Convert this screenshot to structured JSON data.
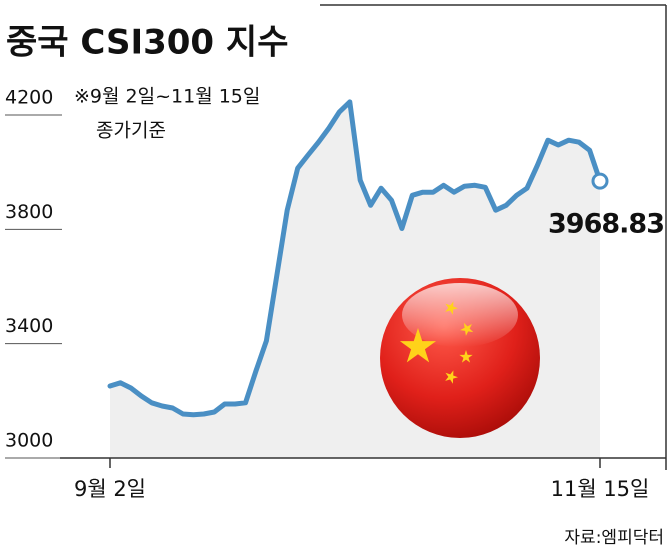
{
  "chart_data": {
    "type": "line",
    "title": "중국 CSI300 지수",
    "annotations": [
      "※9월 2일~11월 15일",
      "종가기준"
    ],
    "source": "자료:엠피닥터",
    "categories": [
      "9월 2일",
      null,
      null,
      null,
      null,
      null,
      null,
      null,
      null,
      null,
      null,
      null,
      null,
      null,
      null,
      null,
      null,
      null,
      null,
      null,
      null,
      null,
      null,
      null,
      null,
      null,
      null,
      null,
      null,
      null,
      null,
      null,
      null,
      null,
      null,
      null,
      null,
      null,
      null,
      null,
      null,
      null,
      null,
      null,
      null,
      null,
      null,
      "11월 15일"
    ],
    "values": [
      3252,
      3263,
      3245,
      3217,
      3193,
      3182,
      3175,
      3154,
      3151,
      3154,
      3161,
      3189,
      3189,
      3193,
      3305,
      3410,
      3638,
      3867,
      4014,
      4060,
      4105,
      4154,
      4211,
      4246,
      3972,
      3884,
      3944,
      3902,
      3803,
      3919,
      3930,
      3930,
      3954,
      3930,
      3951,
      3954,
      3947,
      3867,
      3884,
      3919,
      3944,
      4024,
      4112,
      4095,
      4112,
      4105,
      4077,
      3968.83
    ],
    "color": "#4a8fc4",
    "ylim": [
      3000,
      4200
    ],
    "yticks": [
      3000,
      3400,
      3800,
      4200
    ]
  }
}
